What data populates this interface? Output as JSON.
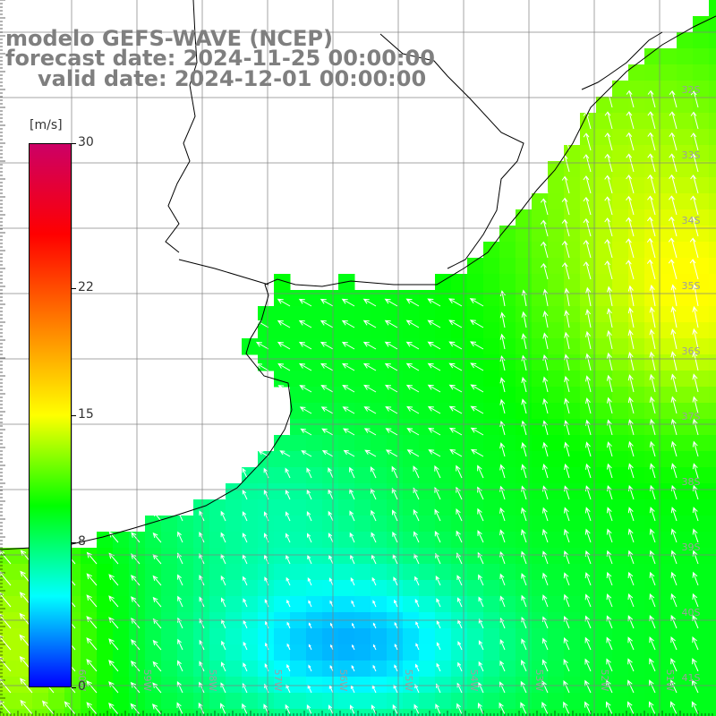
{
  "title": {
    "line1": "modelo GEFS-WAVE (NCEP)",
    "line2": "forecast date: 2024-11-25 00:00:00",
    "line3": "valid date: 2024-12-01 00:00:00"
  },
  "colorbar": {
    "unit": "[m/s]",
    "ticks": [
      "30",
      "22",
      "15",
      "8",
      "0"
    ],
    "tick_values": [
      30,
      22,
      15,
      8,
      0
    ],
    "range": [
      0,
      30
    ],
    "gradient": [
      "#0000ff",
      "#00ffff",
      "#00ff00",
      "#ffff00",
      "#ff8000",
      "#ff0000",
      "#cc0066"
    ]
  },
  "map": {
    "lat_labels": [
      "32S",
      "33S",
      "34S",
      "35S",
      "36S",
      "37S",
      "38S",
      "39S",
      "40S",
      "41S"
    ],
    "lon_labels": [
      "60W",
      "59W",
      "58W",
      "57W",
      "56W",
      "55W",
      "54W",
      "53W",
      "52W",
      "51W"
    ],
    "lon_range": [
      -61,
      -50
    ],
    "lat_range": [
      -41.5,
      -30.6
    ],
    "colors": {
      "land": "#ffffff",
      "grid": "#808080",
      "coast": "#000000",
      "arrow": "#ffffff",
      "label": "#9e9e9e"
    }
  }
}
